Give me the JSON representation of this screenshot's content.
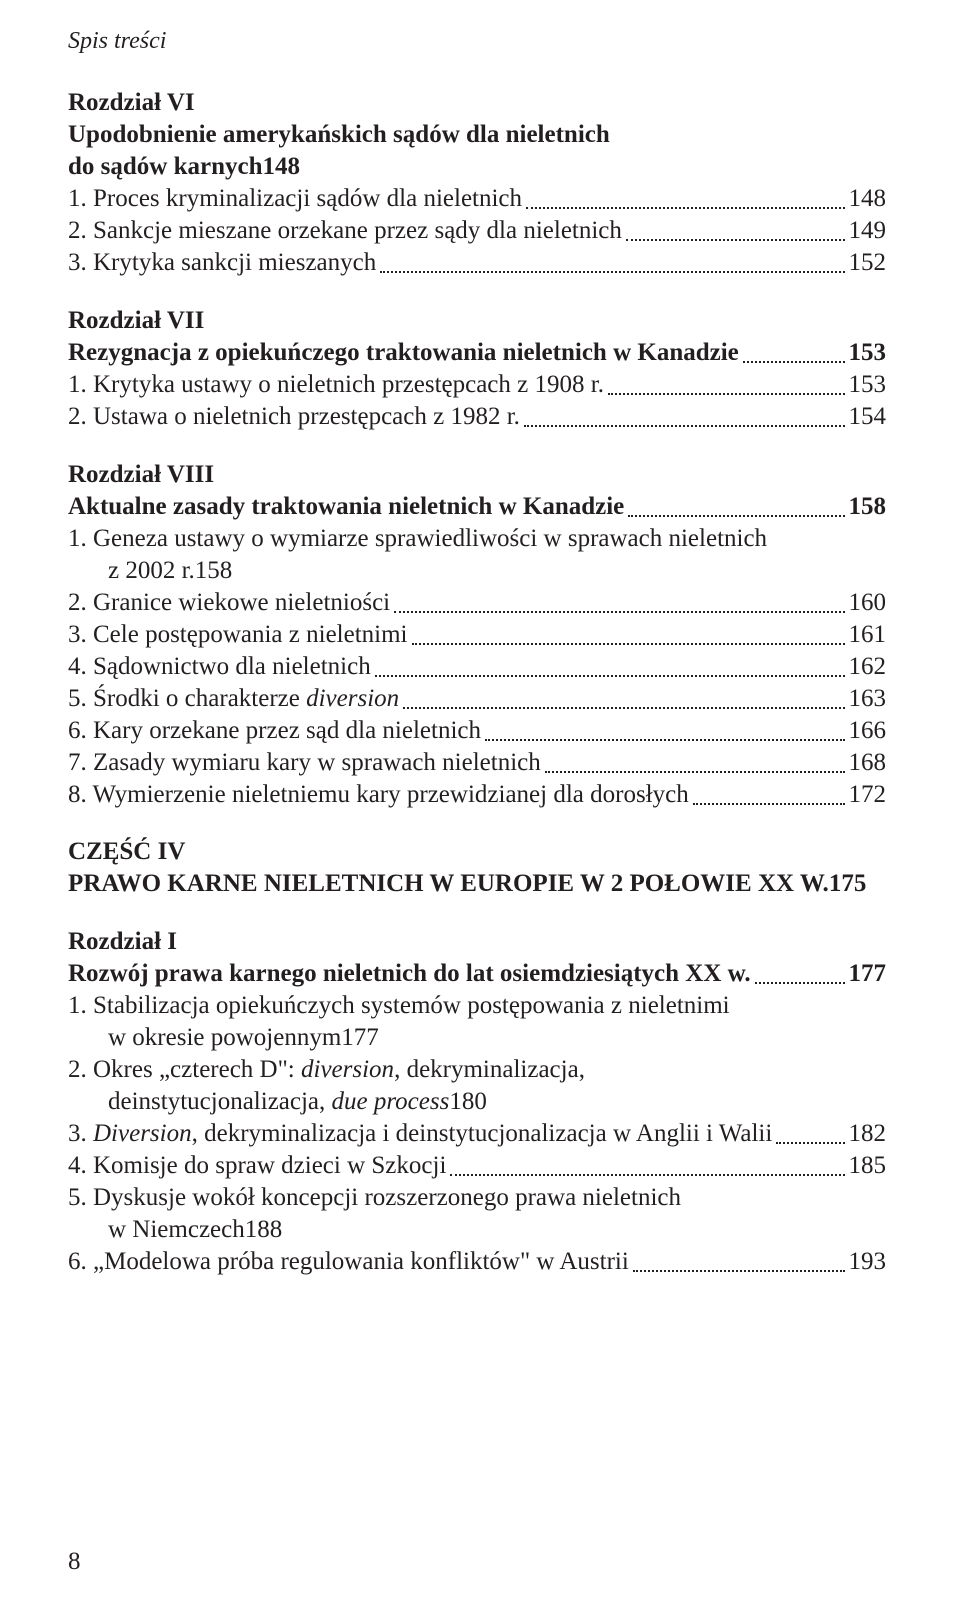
{
  "colors": {
    "text": "#231f20",
    "background": "#ffffff",
    "dot": "#231f20"
  },
  "typography": {
    "family": "Book Antiqua / Palatino serif",
    "base_size_pt": 19,
    "line_height": 1.28
  },
  "runningHead": "Spis treści",
  "footerPage": "8",
  "blocks": [
    {
      "heading": "Rozdział VI",
      "subheading": {
        "text": "Upodobnienie amerykańskich sądów dla nieletnich",
        "tail": "do sądów karnych",
        "page": "148"
      },
      "items": [
        {
          "text": "1. Proces kryminalizacji sądów dla nieletnich",
          "page": "148"
        },
        {
          "text": "2. Sankcje mieszane orzekane przez sądy dla nieletnich",
          "page": "149"
        },
        {
          "text": "3. Krytyka sankcji mieszanych",
          "page": "152"
        }
      ]
    },
    {
      "heading": "Rozdział VII",
      "subheadingLine": {
        "text": "Rezygnacja z opiekuńczego traktowania nieletnich w Kanadzie",
        "page": "153"
      },
      "items": [
        {
          "text": "1. Krytyka ustawy o nieletnich przestępcach z 1908 r.",
          "page": "153"
        },
        {
          "text": "2. Ustawa o nieletnich przestępcach z 1982 r.",
          "page": "154"
        }
      ]
    },
    {
      "heading": "Rozdział VIII",
      "subheadingLine": {
        "text": "Aktualne zasady traktowania nieletnich w Kanadzie",
        "page": "158"
      },
      "items": [
        {
          "text": "1. Geneza ustawy o wymiarze sprawiedliwości w sprawach nieletnich",
          "tail": "z 2002 r.",
          "page": "158"
        },
        {
          "text": "2. Granice wiekowe nieletniości",
          "page": "160"
        },
        {
          "text": "3. Cele postępowania z nieletnimi",
          "page": "161"
        },
        {
          "text": "4. Sądownictwo dla nieletnich",
          "page": "162"
        },
        {
          "textHtml": "5. Środki o charakterze <span class=\"italic\">diversion</span>",
          "page": "163"
        },
        {
          "text": "6. Kary orzekane przez sąd dla nieletnich",
          "page": "166"
        },
        {
          "text": "7. Zasady wymiaru kary w sprawach nieletnich",
          "page": "168"
        },
        {
          "text": "8. Wymierzenie nieletniemu kary przewidzianej dla dorosłych",
          "page": "172"
        }
      ]
    }
  ],
  "part": {
    "title": "CZĘŚĆ IV",
    "line": {
      "text": "PRAWO KARNE NIELETNICH W EUROPIE W 2 POŁOWIE XX W.",
      "page": "175"
    }
  },
  "blocksAfterPart": [
    {
      "heading": "Rozdział I",
      "subheadingLine": {
        "text": "Rozwój prawa karnego nieletnich do lat osiemdziesiątych XX w.",
        "page": "177"
      },
      "items": [
        {
          "text": "1. Stabilizacja opiekuńczych systemów postępowania z nieletnimi",
          "tail": "w okresie powojennym",
          "page": "177"
        },
        {
          "textHtml": "2. Okres „czterech D\": <span class=\"italic\">diversion</span>, dekryminalizacja,",
          "tailHtml": "deinstytucjonalizacja, <span class=\"italic\">due process</span>",
          "page": "180"
        },
        {
          "textHtml": "3. <span class=\"italic\">Diversion</span>, dekryminalizacja i deinstytucjonalizacja w Anglii i Walii",
          "page": "182"
        },
        {
          "text": "4. Komisje do spraw dzieci w Szkocji",
          "page": "185"
        },
        {
          "text": "5. Dyskusje wokół koncepcji rozszerzonego prawa nieletnich",
          "tail": "w Niemczech",
          "page": "188"
        },
        {
          "text": "6. „Modelowa próba regulowania konfliktów\" w Austrii",
          "page": "193"
        }
      ]
    }
  ]
}
